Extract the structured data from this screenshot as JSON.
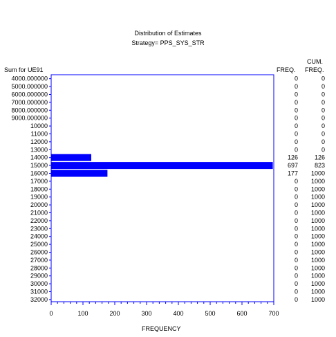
{
  "chart_data": {
    "type": "bar",
    "orientation": "horizontal",
    "title": "Distribution of Estimates",
    "subtitle": "Strategy= PPS_SYS_STR",
    "ylabel": "Sum for UE91",
    "xlabel": "FREQUENCY",
    "freq_header": "FREQ.",
    "cum_header_line1": "CUM.",
    "cum_header_line2": "FREQ.",
    "xlim": [
      0,
      700
    ],
    "xticks": [
      "0",
      "100",
      "200",
      "300",
      "400",
      "500",
      "600",
      "700"
    ],
    "bar_color": "#0000ff",
    "categories": [
      "4000.000000",
      "5000.000000",
      "6000.000000",
      "7000.000000",
      "8000.000000",
      "9000.000000",
      "10000",
      "11000",
      "12000",
      "13000",
      "14000",
      "15000",
      "16000",
      "17000",
      "18000",
      "19000",
      "20000",
      "21000",
      "22000",
      "23000",
      "24000",
      "25000",
      "26000",
      "27000",
      "28000",
      "29000",
      "30000",
      "31000",
      "32000"
    ],
    "values": [
      0,
      0,
      0,
      0,
      0,
      0,
      0,
      0,
      0,
      0,
      126,
      697,
      177,
      0,
      0,
      0,
      0,
      0,
      0,
      0,
      0,
      0,
      0,
      0,
      0,
      0,
      0,
      0,
      0
    ],
    "freq": [
      "0",
      "0",
      "0",
      "0",
      "0",
      "0",
      "0",
      "0",
      "0",
      "0",
      "126",
      "697",
      "177",
      "0",
      "0",
      "0",
      "0",
      "0",
      "0",
      "0",
      "0",
      "0",
      "0",
      "0",
      "0",
      "0",
      "0",
      "0",
      "0"
    ],
    "cum_freq": [
      "0",
      "0",
      "0",
      "0",
      "0",
      "0",
      "0",
      "0",
      "0",
      "0",
      "126",
      "823",
      "1000",
      "1000",
      "1000",
      "1000",
      "1000",
      "1000",
      "1000",
      "1000",
      "1000",
      "1000",
      "1000",
      "1000",
      "1000",
      "1000",
      "1000",
      "1000",
      "1000"
    ]
  }
}
